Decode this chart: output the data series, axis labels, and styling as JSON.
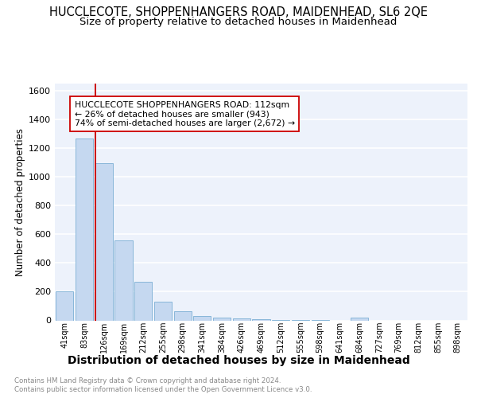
{
  "title": "HUCCLECOTE, SHOPPENHANGERS ROAD, MAIDENHEAD, SL6 2QE",
  "subtitle": "Size of property relative to detached houses in Maidenhead",
  "xlabel": "Distribution of detached houses by size in Maidenhead",
  "ylabel": "Number of detached properties",
  "footer_line1": "Contains HM Land Registry data © Crown copyright and database right 2024.",
  "footer_line2": "Contains public sector information licensed under the Open Government Licence v3.0.",
  "categories": [
    "41sqm",
    "83sqm",
    "126sqm",
    "169sqm",
    "212sqm",
    "255sqm",
    "298sqm",
    "341sqm",
    "384sqm",
    "426sqm",
    "469sqm",
    "512sqm",
    "555sqm",
    "598sqm",
    "641sqm",
    "684sqm",
    "727sqm",
    "769sqm",
    "812sqm",
    "855sqm",
    "898sqm"
  ],
  "values": [
    200,
    1265,
    1095,
    555,
    270,
    128,
    63,
    30,
    20,
    12,
    8,
    5,
    5,
    3,
    0,
    20,
    0,
    0,
    0,
    0,
    0
  ],
  "bar_color": "#c5d8f0",
  "bar_edge_color": "#7bafd4",
  "vline_color": "#cc0000",
  "annotation_box_text": "HUCCLECOTE SHOPPENHANGERS ROAD: 112sqm\n← 26% of detached houses are smaller (943)\n74% of semi-detached houses are larger (2,672) →",
  "annotation_box_color": "#ffffff",
  "annotation_box_edge_color": "#cc0000",
  "ylim": [
    0,
    1650
  ],
  "yticks": [
    0,
    200,
    400,
    600,
    800,
    1000,
    1200,
    1400,
    1600
  ],
  "plot_bg_color": "#edf2fb",
  "grid_color": "#ffffff",
  "title_fontsize": 10.5,
  "subtitle_fontsize": 9.5,
  "xlabel_fontsize": 10,
  "ylabel_fontsize": 8.5
}
